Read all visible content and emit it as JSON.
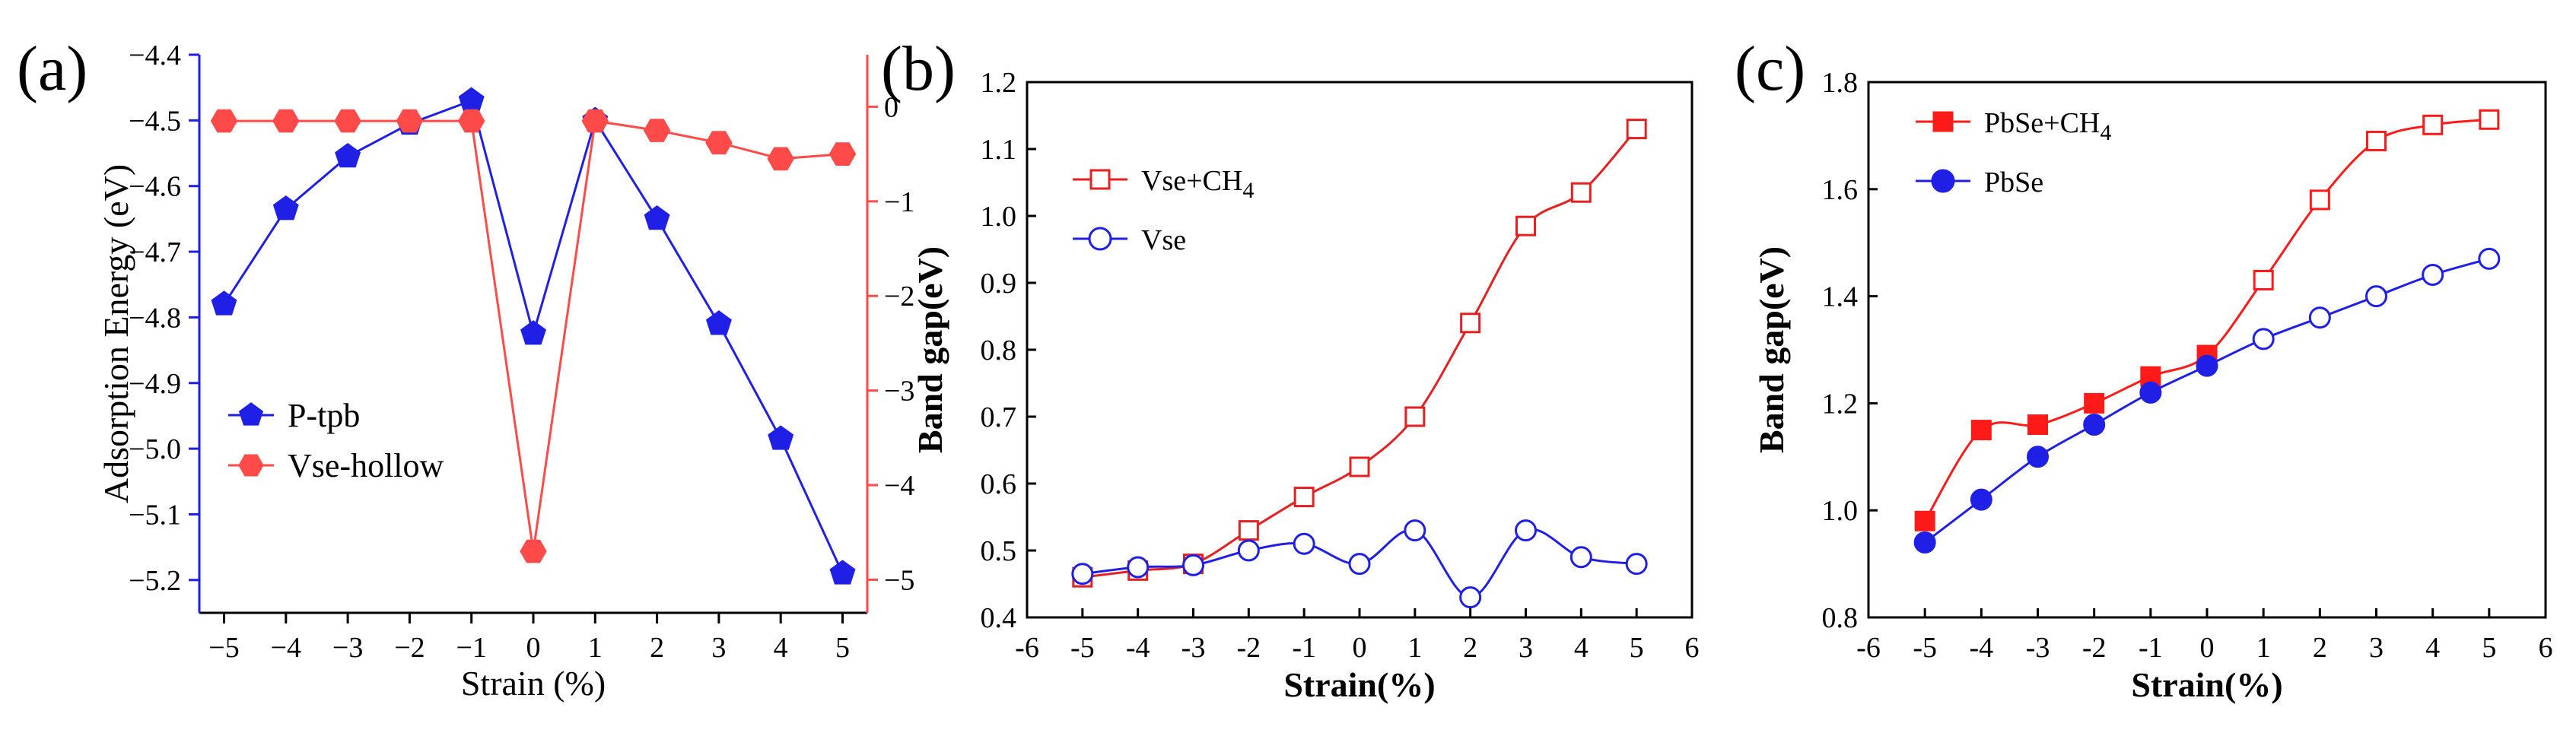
{
  "chart_data": [
    {
      "panel": "(a)",
      "type": "line",
      "xlabel": "Strain (%)",
      "ylabel": "Adsorption Energy (eV)",
      "x": [
        -5,
        -4,
        -3,
        -2,
        -1,
        0,
        1,
        2,
        3,
        4,
        5
      ],
      "xticks": [
        "−5",
        "−4",
        "−3",
        "−2",
        "−1",
        "0",
        "1",
        "2",
        "3",
        "4",
        "5"
      ],
      "xlim": [
        -5.4,
        5.4
      ],
      "ylim": [
        -5.25,
        -4.4
      ],
      "yticks": [
        "−4.4",
        "−4.5",
        "−4.6",
        "−4.7",
        "−4.8",
        "−4.9",
        "−5.0",
        "−5.1",
        "−5.2"
      ],
      "ytick_values": [
        -4.4,
        -4.5,
        -4.6,
        -4.7,
        -4.8,
        -4.9,
        -5.0,
        -5.1,
        -5.2
      ],
      "y2lim": [
        -5.35,
        0.55
      ],
      "y2ticks": [
        "0",
        "−1",
        "−2",
        "−3",
        "−4",
        "−5"
      ],
      "y2tick_values": [
        0,
        -1,
        -2,
        -3,
        -4,
        -5
      ],
      "series": [
        {
          "name": "P-tpb",
          "axis": "left",
          "color": "#1f1fe6",
          "marker": "pentagon",
          "filled": true,
          "values": [
            -4.78,
            -4.635,
            -4.555,
            -4.505,
            -4.47,
            -4.825,
            -4.5,
            -4.65,
            -4.81,
            -4.985,
            -5.19
          ]
        },
        {
          "name": "Vse-hollow",
          "axis": "right",
          "color": "#ff4a4a",
          "marker": "hexagon",
          "filled": true,
          "values": [
            -0.15,
            -0.15,
            -0.15,
            -0.15,
            -0.15,
            -4.7,
            -0.15,
            -0.25,
            -0.38,
            -0.55,
            -0.5
          ]
        }
      ],
      "legend": [
        "P-tpb",
        "Vse-hollow"
      ],
      "legend_position": "bottom-left"
    },
    {
      "panel": "(b)",
      "type": "line",
      "xlabel": "Strain(%)",
      "ylabel": "Band gap(eV)",
      "x": [
        -5,
        -4,
        -3,
        -2,
        -1,
        0,
        1,
        2,
        3,
        4,
        5
      ],
      "xticks": [
        "-6",
        "-5",
        "-4",
        "-3",
        "-2",
        "-1",
        "0",
        "1",
        "2",
        "3",
        "4",
        "5",
        "6"
      ],
      "xtick_values": [
        -6,
        -5,
        -4,
        -3,
        -2,
        -1,
        0,
        1,
        2,
        3,
        4,
        5,
        6
      ],
      "xlim": [
        -6,
        6
      ],
      "ylim": [
        0.4,
        1.2
      ],
      "yticks": [
        "0.4",
        "0.5",
        "0.6",
        "0.7",
        "0.8",
        "0.9",
        "1.0",
        "1.1",
        "1.2"
      ],
      "ytick_values": [
        0.4,
        0.5,
        0.6,
        0.7,
        0.8,
        0.9,
        1.0,
        1.1,
        1.2
      ],
      "series": [
        {
          "name": "Vse+CH4",
          "label_main": "Vse+CH",
          "label_sub": "4",
          "color": "#e62020",
          "marker": "square",
          "filled": false,
          "values": [
            0.46,
            0.47,
            0.48,
            0.53,
            0.58,
            0.625,
            0.7,
            0.84,
            0.985,
            1.035,
            1.13
          ]
        },
        {
          "name": "Vse",
          "label_main": "Vse",
          "label_sub": "",
          "color": "#1f1fe6",
          "marker": "circle",
          "filled": false,
          "values": [
            0.465,
            0.475,
            0.478,
            0.5,
            0.51,
            0.48,
            0.53,
            0.43,
            0.53,
            0.49,
            0.48
          ]
        }
      ],
      "legend_position": "top-left"
    },
    {
      "panel": "(c)",
      "type": "line",
      "xlabel": "Strain(%)",
      "ylabel": "Band gap(eV)",
      "x": [
        -5,
        -4,
        -3,
        -2,
        -1,
        0,
        1,
        2,
        3,
        4,
        5
      ],
      "xticks": [
        "-6",
        "-5",
        "-4",
        "-3",
        "-2",
        "-1",
        "0",
        "1",
        "2",
        "3",
        "4",
        "5",
        "6"
      ],
      "xtick_values": [
        -6,
        -5,
        -4,
        -3,
        -2,
        -1,
        0,
        1,
        2,
        3,
        4,
        5,
        6
      ],
      "xlim": [
        -6,
        6
      ],
      "ylim": [
        0.8,
        1.8
      ],
      "yticks": [
        "0.8",
        "1.0",
        "1.2",
        "1.4",
        "1.6",
        "1.8"
      ],
      "ytick_values": [
        0.8,
        1.0,
        1.2,
        1.4,
        1.6,
        1.8
      ],
      "series": [
        {
          "name": "PbSe+CH4",
          "label_main": "PbSe+CH",
          "label_sub": "4",
          "color": "#ff1a1a",
          "marker": "square",
          "filled": true,
          "open_markers": [
            6,
            7,
            8,
            9,
            10
          ],
          "values": [
            0.98,
            1.15,
            1.16,
            1.2,
            1.25,
            1.29,
            1.43,
            1.58,
            1.69,
            1.72,
            1.73
          ]
        },
        {
          "name": "PbSe",
          "label_main": "PbSe",
          "label_sub": "",
          "color": "#1f1fe6",
          "marker": "circle",
          "filled": true,
          "open_markers": [
            6,
            7,
            8,
            9,
            10
          ],
          "values": [
            0.94,
            1.02,
            1.1,
            1.16,
            1.22,
            1.27,
            1.32,
            1.36,
            1.4,
            1.44,
            1.47
          ]
        }
      ],
      "legend_position": "top-left"
    }
  ]
}
